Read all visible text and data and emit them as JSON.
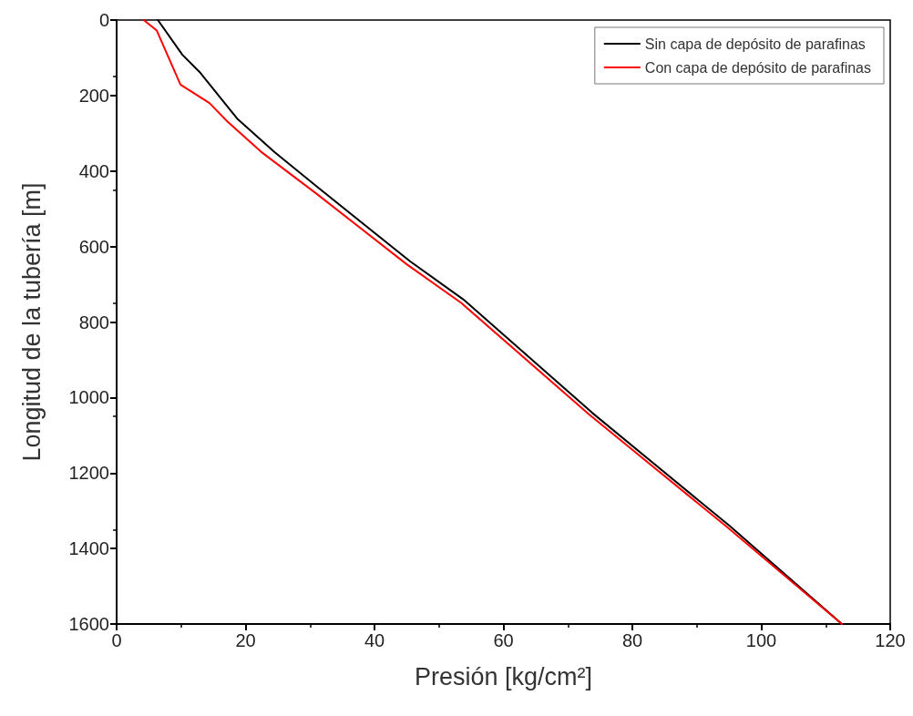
{
  "chart_data": {
    "type": "line",
    "xlabel": "Presión [kg/cm²]",
    "ylabel": "Longitud de la tubería [m]",
    "xlim": [
      0,
      120
    ],
    "xticks": [
      0,
      20,
      40,
      60,
      80,
      100,
      120
    ],
    "ylim": [
      1600,
      0
    ],
    "yticks": [
      0,
      200,
      400,
      600,
      800,
      1000,
      1200,
      1400,
      1600
    ],
    "grid": false,
    "legend": "top right",
    "marker": "none",
    "line_style": "solid",
    "series": [
      {
        "name": "Sin capa de depósito de parafinas",
        "color": "#000000",
        "x": [
          6.4,
          10.2,
          13.0,
          18.7,
          24.5,
          31.4,
          45.5,
          54.0,
          73.8,
          95.0,
          112.5
        ],
        "values": [
          0,
          92,
          140,
          261,
          350,
          446,
          639,
          743,
          1041,
          1339,
          1600
        ]
      },
      {
        "name": "Con capa de depósito de parafinas",
        "color": "#ff0000",
        "x": [
          4.2,
          6.2,
          9.9,
          14.4,
          17.2,
          22.4,
          31.0,
          45.0,
          53.5,
          73.3,
          94.6,
          112.5
        ],
        "values": [
          0,
          27,
          171,
          220,
          269,
          349,
          460,
          647,
          750,
          1045,
          1342,
          1600
        ]
      }
    ]
  }
}
